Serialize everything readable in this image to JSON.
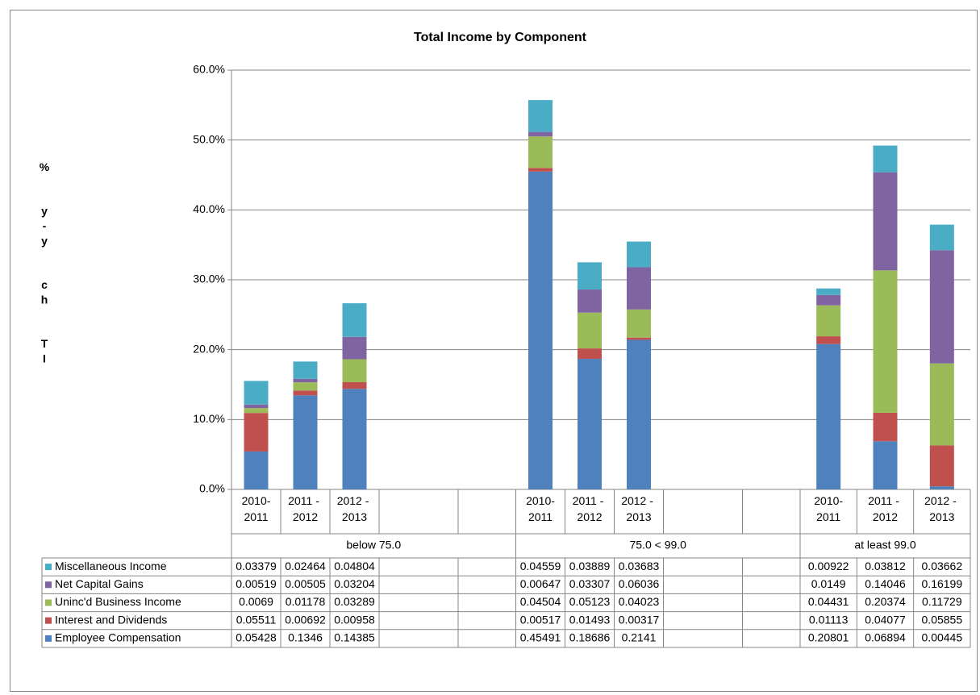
{
  "chart_data": {
    "type": "stacked_bar",
    "title": "Total Income by Component",
    "y_label": "% y-y ch TI",
    "categories": [
      "2010-2011",
      "2011 - 2012",
      "2012 - 2013",
      null,
      null,
      "2010-2011",
      "2011 - 2012",
      "2012 - 2013",
      null,
      null,
      "2010-2011",
      "2011 - 2012",
      "2012 - 2013"
    ],
    "groups": [
      "below 75.0",
      "75.0 < 99.0",
      "at least 99.0"
    ],
    "series": [
      {
        "name": "Employee Compensation",
        "color": "#4f81bd",
        "values": [
          0.05428,
          0.1346,
          0.14385,
          null,
          null,
          0.45491,
          0.18686,
          0.2141,
          null,
          null,
          0.20801,
          0.06894,
          0.00445
        ]
      },
      {
        "name": "Interest and Dividends",
        "color": "#c0504d",
        "values": [
          0.05511,
          0.00692,
          0.00958,
          null,
          null,
          0.00517,
          0.01493,
          0.00317,
          null,
          null,
          0.01113,
          0.04077,
          0.05855
        ]
      },
      {
        "name": "Uninc'd Business Income",
        "color": "#9bbb59",
        "values": [
          0.0069,
          0.01178,
          0.03289,
          null,
          null,
          0.04504,
          0.05123,
          0.04023,
          null,
          null,
          0.04431,
          0.20374,
          0.11729
        ]
      },
      {
        "name": "Net Capital Gains",
        "color": "#8064a2",
        "values": [
          0.00519,
          0.00505,
          0.03204,
          null,
          null,
          0.00647,
          0.03307,
          0.06036,
          null,
          null,
          0.0149,
          0.14046,
          0.16199
        ]
      },
      {
        "name": "Miscellaneous Income",
        "color": "#4bacc6",
        "values": [
          0.03379,
          0.02464,
          0.04804,
          null,
          null,
          0.04559,
          0.03889,
          0.03683,
          null,
          null,
          0.00922,
          0.03812,
          0.03662
        ]
      }
    ],
    "ylim": [
      0,
      0.6
    ],
    "yticks": [
      {
        "value": 0,
        "label": "0.0%"
      },
      {
        "value": 0.1,
        "label": "10.0%"
      },
      {
        "value": 0.2,
        "label": "20.0%"
      },
      {
        "value": 0.3,
        "label": "30.0%"
      },
      {
        "value": 0.4,
        "label": "40.0%"
      },
      {
        "value": 0.5,
        "label": "50.0%"
      },
      {
        "value": 0.6,
        "label": "60.0%"
      }
    ],
    "grid": true
  }
}
